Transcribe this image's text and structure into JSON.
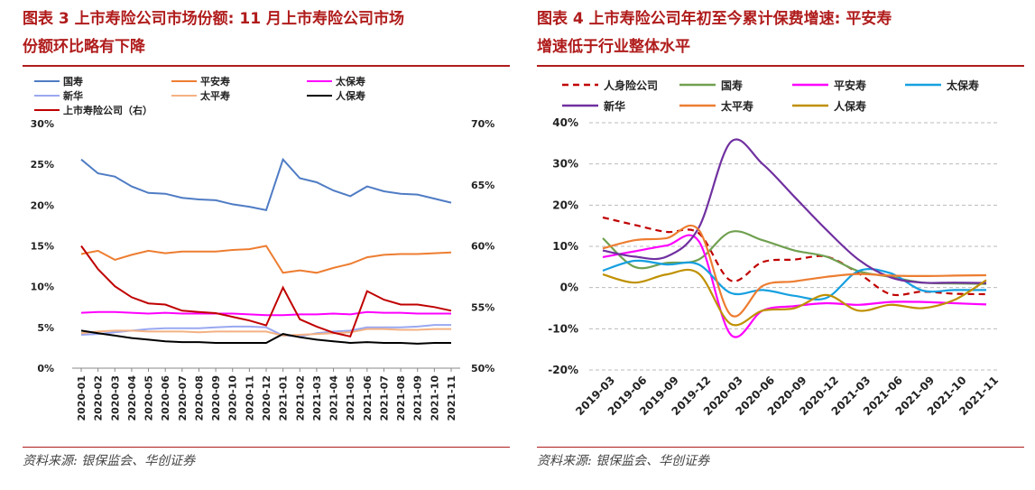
{
  "left": {
    "title": "图表 3 上市寿险公司市场份额: 11 月上市寿险公司市场份额环比略有下降",
    "title_line1": "图表 3 上市寿险公司市场份额: 11 月上市寿险公司市场",
    "title_line2": "份额环比略有下降",
    "source": "资料来源: 银保监会、华创证券"
  },
  "right": {
    "title": "图表 4 上市寿险公司年初至今累计保费增速: 平安寿增速低于行业整体水平",
    "title_line1": "图表 4 上市寿险公司年初至今累计保费增速: 平安寿",
    "title_line2": "增速低于行业整体水平",
    "source": "资料来源: 银保监会、华创证券"
  },
  "chart_data": [
    {
      "type": "line",
      "title": "",
      "x": [
        "2020-01",
        "2020-02",
        "2020-03",
        "2020-04",
        "2020-05",
        "2020-06",
        "2020-07",
        "2020-08",
        "2020-09",
        "2020-10",
        "2020-11",
        "2020-12",
        "2021-01",
        "2021-02",
        "2021-03",
        "2021-04",
        "2021-05",
        "2021-06",
        "2021-07",
        "2021-08",
        "2021-09",
        "2021-10",
        "2021-11"
      ],
      "ylim": [
        0,
        30
      ],
      "yticks": [
        "0%",
        "5%",
        "10%",
        "15%",
        "20%",
        "25%",
        "30%"
      ],
      "y2lim": [
        50,
        70
      ],
      "y2ticks": [
        "50%",
        "55%",
        "60%",
        "65%",
        "70%"
      ],
      "grid": false,
      "legend_position": "top",
      "series": [
        {
          "name": "国寿",
          "axis": "left",
          "color": "#4f7cc4",
          "values": [
            25.6,
            23.9,
            23.5,
            22.3,
            21.5,
            21.4,
            20.9,
            20.7,
            20.6,
            20.1,
            19.8,
            19.4,
            25.6,
            23.3,
            22.8,
            21.8,
            21.1,
            22.3,
            21.7,
            21.4,
            21.3,
            20.8,
            20.3
          ]
        },
        {
          "name": "平安寿",
          "axis": "left",
          "color": "#ed7d31",
          "values": [
            14.0,
            14.4,
            13.3,
            13.9,
            14.4,
            14.1,
            14.3,
            14.3,
            14.3,
            14.5,
            14.6,
            15.0,
            11.7,
            12.0,
            11.7,
            12.3,
            12.8,
            13.6,
            13.9,
            14.0,
            14.0,
            14.1,
            14.2
          ]
        },
        {
          "name": "太保寿",
          "axis": "left",
          "color": "#ff00ff",
          "values": [
            6.8,
            6.9,
            6.9,
            6.8,
            6.7,
            6.8,
            6.7,
            6.7,
            6.7,
            6.7,
            6.6,
            6.5,
            6.5,
            6.6,
            6.6,
            6.7,
            6.6,
            6.9,
            6.8,
            6.8,
            6.7,
            6.7,
            6.7
          ]
        },
        {
          "name": "新华",
          "axis": "left",
          "color": "#9aa8f0",
          "values": [
            4.1,
            4.2,
            4.4,
            4.6,
            4.8,
            4.9,
            4.9,
            4.9,
            5.0,
            5.1,
            5.1,
            5.0,
            4.0,
            3.9,
            4.3,
            4.5,
            4.6,
            5.0,
            5.0,
            5.0,
            5.1,
            5.3,
            5.3
          ]
        },
        {
          "name": "太平寿",
          "axis": "left",
          "color": "#f4b183",
          "values": [
            4.3,
            4.5,
            4.6,
            4.6,
            4.5,
            4.5,
            4.5,
            4.4,
            4.5,
            4.5,
            4.5,
            4.5,
            4.0,
            4.1,
            4.2,
            4.3,
            4.4,
            4.8,
            4.8,
            4.7,
            4.7,
            4.8,
            4.8
          ]
        },
        {
          "name": "人保寿",
          "axis": "left",
          "color": "#000000",
          "values": [
            4.6,
            4.3,
            4.0,
            3.7,
            3.5,
            3.3,
            3.2,
            3.2,
            3.1,
            3.1,
            3.1,
            3.1,
            4.2,
            3.8,
            3.5,
            3.3,
            3.1,
            3.2,
            3.1,
            3.1,
            3.0,
            3.1,
            3.1
          ]
        },
        {
          "name": "上市寿险公司（右）",
          "axis": "right",
          "color": "#c00000",
          "values": [
            60.0,
            58.1,
            56.7,
            55.8,
            55.3,
            55.2,
            54.7,
            54.6,
            54.5,
            54.2,
            53.9,
            53.5,
            56.6,
            54.0,
            53.4,
            52.9,
            52.6,
            56.3,
            55.6,
            55.2,
            55.2,
            55.0,
            54.7
          ]
        }
      ]
    },
    {
      "type": "line",
      "title": "",
      "x": [
        "2019-03",
        "2019-06",
        "2019-09",
        "2019-12",
        "2020-03",
        "2020-06",
        "2020-09",
        "2020-12",
        "2021-03",
        "2021-06",
        "2021-09",
        "2021-10",
        "2021-11"
      ],
      "ylim": [
        -20,
        40
      ],
      "yticks": [
        "-20%",
        "-10%",
        "0%",
        "10%",
        "20%",
        "30%",
        "40%"
      ],
      "grid": true,
      "legend_position": "top",
      "series": [
        {
          "name": "人身险公司",
          "color": "#c00000",
          "dash": true,
          "values": [
            17.0,
            15.2,
            13.5,
            13.2,
            1.7,
            6.2,
            6.8,
            7.5,
            3.5,
            -1.6,
            -1.0,
            -1.5,
            -1.6
          ]
        },
        {
          "name": "国寿",
          "color": "#70a050",
          "values": [
            12.0,
            5.0,
            6.0,
            6.8,
            13.5,
            11.5,
            9.0,
            7.5,
            4.0,
            2.6,
            1.2,
            1.0,
            0.9
          ]
        },
        {
          "name": "平安寿",
          "color": "#ff00ff",
          "values": [
            7.4,
            8.8,
            10.2,
            11.3,
            -11.4,
            -5.6,
            -4.5,
            -3.8,
            -4.2,
            -3.5,
            -3.5,
            -3.8,
            -4.1
          ]
        },
        {
          "name": "太保寿",
          "color": "#16a0e0",
          "values": [
            4.1,
            6.5,
            5.6,
            5.6,
            -1.3,
            -0.6,
            -2.0,
            -2.5,
            4.0,
            3.5,
            -0.7,
            -0.6,
            -0.6
          ]
        },
        {
          "name": "新华",
          "color": "#7030a0",
          "values": [
            9.0,
            7.5,
            7.5,
            14.5,
            35.3,
            30.0,
            22.0,
            14.0,
            6.8,
            2.5,
            1.2,
            1.2,
            1.1
          ]
        },
        {
          "name": "太平寿",
          "color": "#ed7d31",
          "values": [
            9.5,
            11.5,
            12.0,
            14.0,
            -6.6,
            0.4,
            1.5,
            2.6,
            3.3,
            2.9,
            2.8,
            2.9,
            3.0
          ]
        },
        {
          "name": "人保寿",
          "color": "#bf9000",
          "values": [
            3.2,
            1.2,
            3.2,
            3.4,
            -8.8,
            -5.6,
            -5.0,
            -1.8,
            -5.6,
            -4.2,
            -5.0,
            -3.0,
            1.8
          ]
        }
      ]
    }
  ]
}
